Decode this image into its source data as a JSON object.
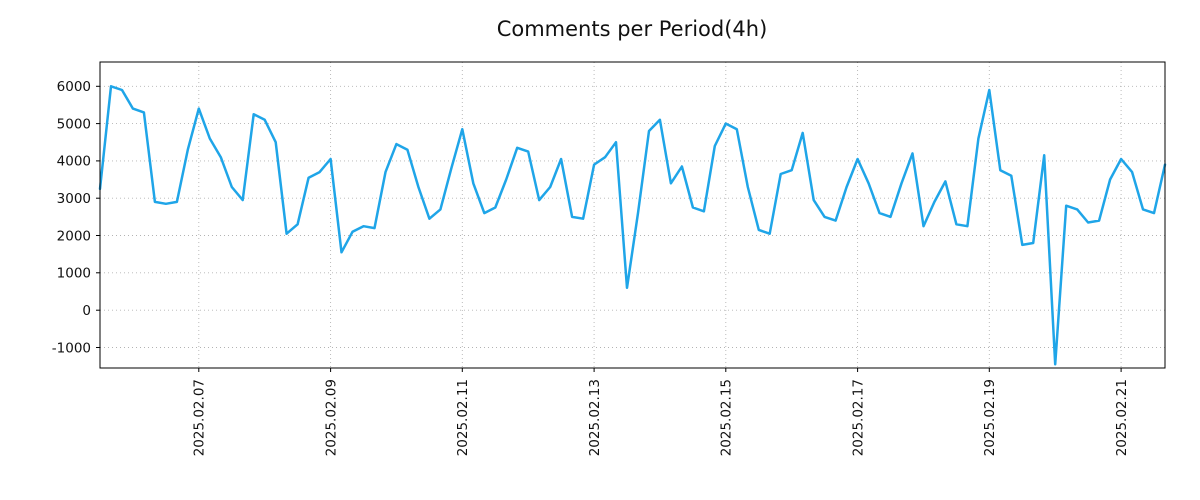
{
  "chart_data": {
    "type": "line",
    "title": "Comments per Period(4h)",
    "xlabel": "",
    "ylabel": "",
    "grid": true,
    "legend_position": "none",
    "line_color": "#1fa5e8",
    "grid_color": "#b3b3b3",
    "axis_color": "#000000",
    "line_width": 2.5,
    "ylim": [
      -1550,
      6650
    ],
    "y_ticks": [
      -1000,
      0,
      1000,
      2000,
      3000,
      4000,
      5000,
      6000
    ],
    "x_tick_labels": [
      "2025.02.07",
      "2025.02.09",
      "2025.02.11",
      "2025.02.13",
      "2025.02.15",
      "2025.02.17",
      "2025.02.19",
      "2025.02.21"
    ],
    "x_tick_indices": [
      9,
      21,
      33,
      45,
      57,
      69,
      81,
      93
    ],
    "period_hours": 4,
    "values": [
      3250,
      6000,
      5900,
      5400,
      5300,
      2900,
      2850,
      2900,
      4300,
      5400,
      4600,
      4100,
      3300,
      2950,
      5250,
      5100,
      4500,
      2050,
      2300,
      3550,
      3700,
      4050,
      1550,
      2100,
      2250,
      2200,
      3700,
      4450,
      4300,
      3300,
      2450,
      2700,
      3800,
      4850,
      3400,
      2600,
      2750,
      3500,
      4350,
      4250,
      2950,
      3300,
      4050,
      2500,
      2450,
      3900,
      4100,
      4500,
      600,
      2600,
      4800,
      5100,
      3400,
      3850,
      2750,
      2650,
      4400,
      5000,
      4850,
      3300,
      2150,
      2050,
      3650,
      3750,
      4750,
      2950,
      2500,
      2400,
      3300,
      4050,
      3400,
      2600,
      2500,
      3400,
      4200,
      2250,
      2900,
      3450,
      2300,
      2250,
      4600,
      5900,
      3750,
      3600,
      1750,
      1800,
      4150,
      -1450,
      2800,
      2700,
      2350,
      2400,
      3500,
      4050,
      3700,
      2700,
      2600,
      3900
    ]
  }
}
